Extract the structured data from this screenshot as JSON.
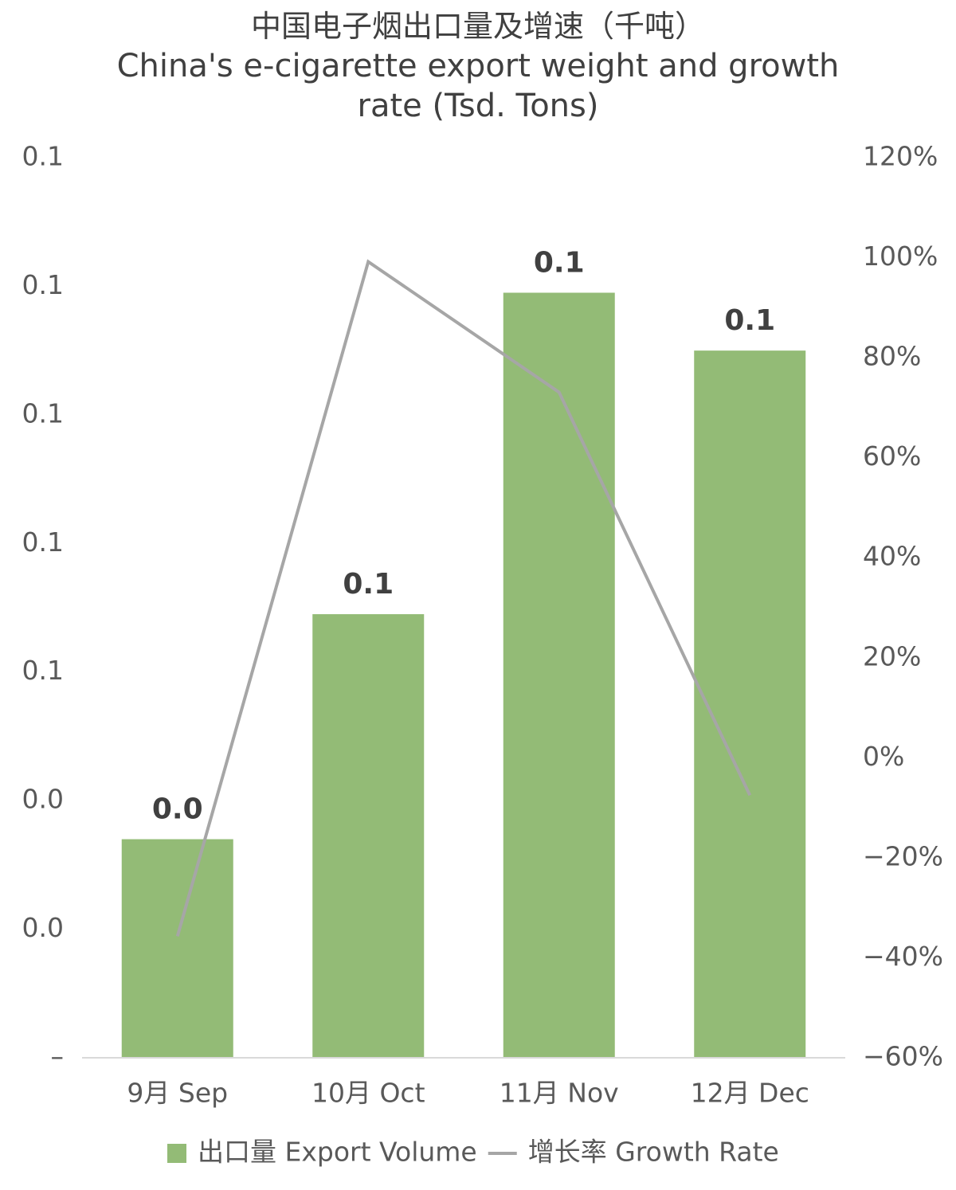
{
  "chart_data": {
    "type": "bar-line",
    "title": "中国电子烟出口量及增速（千吨）",
    "subtitle": "China's e-cigarette export weight and growth rate (Tsd. Tons)",
    "categories": [
      "9月 Sep",
      "10月 Oct",
      "11月 Nov",
      "12月 Dec"
    ],
    "series": [
      {
        "name": "出口量 Export Volume",
        "type": "bar",
        "color": "#93bb76",
        "values": [
          0.034,
          0.069,
          0.119,
          0.11
        ],
        "value_labels": [
          "0.0",
          "0.1",
          "0.1",
          "0.1"
        ]
      },
      {
        "name": "增长率 Growth Rate",
        "type": "line",
        "axis": "y2",
        "color": "#a6a6a6",
        "values": [
          -35.7,
          99.2,
          73.1,
          -7.5
        ]
      }
    ],
    "ylim": [
      0,
      0.14
    ],
    "yticks": [
      {
        "value": 0,
        "label": "–"
      },
      {
        "value": 0.02,
        "label": "0.0"
      },
      {
        "value": 0.04,
        "label": "0.0"
      },
      {
        "value": 0.06,
        "label": "0.1"
      },
      {
        "value": 0.08,
        "label": "0.1"
      },
      {
        "value": 0.1,
        "label": "0.1"
      },
      {
        "value": 0.12,
        "label": "0.1"
      },
      {
        "value": 0.14,
        "label": "0.1"
      }
    ],
    "y2lim": [
      -60,
      120
    ],
    "y2ticks": [
      {
        "value": -60,
        "label": "−60%"
      },
      {
        "value": -40,
        "label": "−40%"
      },
      {
        "value": -20,
        "label": "−20%"
      },
      {
        "value": 0,
        "label": "0%"
      },
      {
        "value": 20,
        "label": "20%"
      },
      {
        "value": 40,
        "label": "40%"
      },
      {
        "value": 60,
        "label": "60%"
      },
      {
        "value": 80,
        "label": "80%"
      },
      {
        "value": 100,
        "label": "100%"
      },
      {
        "value": 120,
        "label": "120%"
      }
    ],
    "legend": "bottom"
  }
}
